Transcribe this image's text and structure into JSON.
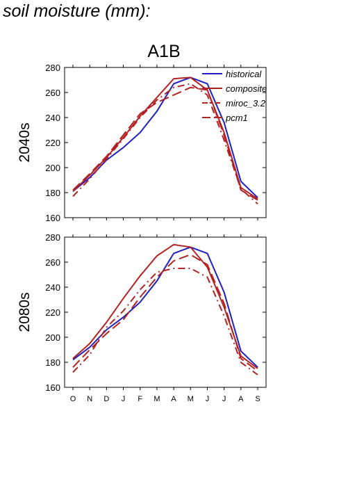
{
  "page_title": "soil moisture (mm):",
  "chart_data": [
    {
      "type": "line",
      "title": "A1B",
      "ylabel": "2040s",
      "xlabel": "",
      "categories": [
        "O",
        "N",
        "D",
        "J",
        "F",
        "M",
        "A",
        "M",
        "J",
        "J",
        "A",
        "S"
      ],
      "ylim": [
        160,
        280
      ],
      "yticks": [
        160,
        180,
        200,
        220,
        240,
        260,
        280
      ],
      "legend_position": "top-right",
      "series": [
        {
          "name": "historical",
          "color": "#1f1fbf",
          "style": "solid",
          "values": [
            181,
            192,
            206,
            216,
            228,
            245,
            267,
            272,
            267,
            236,
            189,
            176
          ]
        },
        {
          "name": "composite",
          "color": "#b22222",
          "style": "solid",
          "values": [
            181,
            194,
            208,
            224,
            241,
            256,
            271,
            272,
            262,
            228,
            184,
            175
          ]
        },
        {
          "name": "miroc_3.2",
          "color": "#b22222",
          "style": "dashdot",
          "values": [
            177,
            191,
            207,
            223,
            240,
            254,
            264,
            267,
            258,
            222,
            183,
            171
          ]
        },
        {
          "name": "pcm1",
          "color": "#b22222",
          "style": "dash",
          "values": [
            182,
            195,
            209,
            226,
            243,
            252,
            258,
            264,
            262,
            226,
            182,
            174
          ]
        }
      ]
    },
    {
      "type": "line",
      "title": "",
      "ylabel": "2080s",
      "xlabel": "",
      "categories": [
        "O",
        "N",
        "D",
        "J",
        "F",
        "M",
        "A",
        "M",
        "J",
        "J",
        "A",
        "S"
      ],
      "ylim": [
        160,
        280
      ],
      "yticks": [
        160,
        180,
        200,
        220,
        240,
        260,
        280
      ],
      "series": [
        {
          "name": "historical",
          "color": "#1f1fbf",
          "style": "solid",
          "values": [
            182,
            192,
            206,
            216,
            228,
            245,
            267,
            272,
            267,
            236,
            189,
            176
          ]
        },
        {
          "name": "composite",
          "color": "#b22222",
          "style": "solid",
          "values": [
            183,
            195,
            212,
            231,
            249,
            265,
            274,
            272,
            256,
            224,
            185,
            175
          ]
        },
        {
          "name": "miroc_3.2",
          "color": "#b22222",
          "style": "dashdot",
          "values": [
            172,
            186,
            208,
            221,
            238,
            252,
            255,
            255,
            248,
            217,
            180,
            170
          ]
        },
        {
          "name": "pcm1",
          "color": "#b22222",
          "style": "dash",
          "values": [
            176,
            190,
            203,
            214,
            232,
            248,
            261,
            266,
            258,
            227,
            183,
            173
          ]
        }
      ]
    }
  ]
}
